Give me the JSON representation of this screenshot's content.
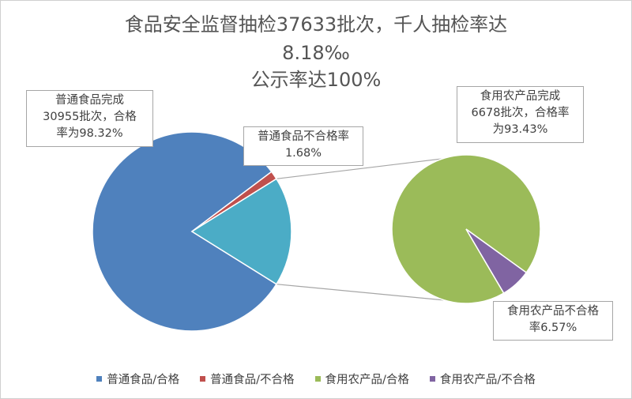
{
  "title": {
    "line1": "食品安全监督抽检37633批次，千人抽检率达",
    "line2": "8.18‰",
    "line3": "公示率达100%"
  },
  "callouts": {
    "general_pass": [
      "普通食品完成",
      "30955批次，合格",
      "率为98.32%"
    ],
    "general_fail": [
      "普通食品不合格率",
      "1.68%"
    ],
    "agri_pass": [
      "食用农产品完成",
      "6678批次，合格率",
      "为93.43%"
    ],
    "agri_fail": [
      "食用农产品不合格",
      "率6.57%"
    ]
  },
  "legend": [
    {
      "label": "普通食品/合格",
      "color": "#4f81bd"
    },
    {
      "label": "普通食品/不合格",
      "color": "#c0504d"
    },
    {
      "label": "食用农产品/合格",
      "color": "#9bbb59"
    },
    {
      "label": "食用农产品/不合格",
      "color": "#8064a2"
    }
  ],
  "chart_data": {
    "type": "pie",
    "subtype": "pie-of-pie",
    "title": "食品安全监督抽检37633批次，千人抽检率达8.18‰ 公示率达100%",
    "main_pie": {
      "slices": [
        {
          "name": "普通食品/合格",
          "value": 30435,
          "color": "#4f81bd"
        },
        {
          "name": "普通食品/不合格",
          "value": 520,
          "color": "#c0504d"
        },
        {
          "name": "食用农产品",
          "value": 6678,
          "color": "#4bacc6"
        }
      ]
    },
    "secondary_pie": {
      "slices": [
        {
          "name": "食用农产品/合格",
          "value": 6239,
          "color": "#9bbb59"
        },
        {
          "name": "食用农产品/不合格",
          "value": 439,
          "color": "#8064a2"
        }
      ]
    },
    "legend_position": "bottom"
  }
}
